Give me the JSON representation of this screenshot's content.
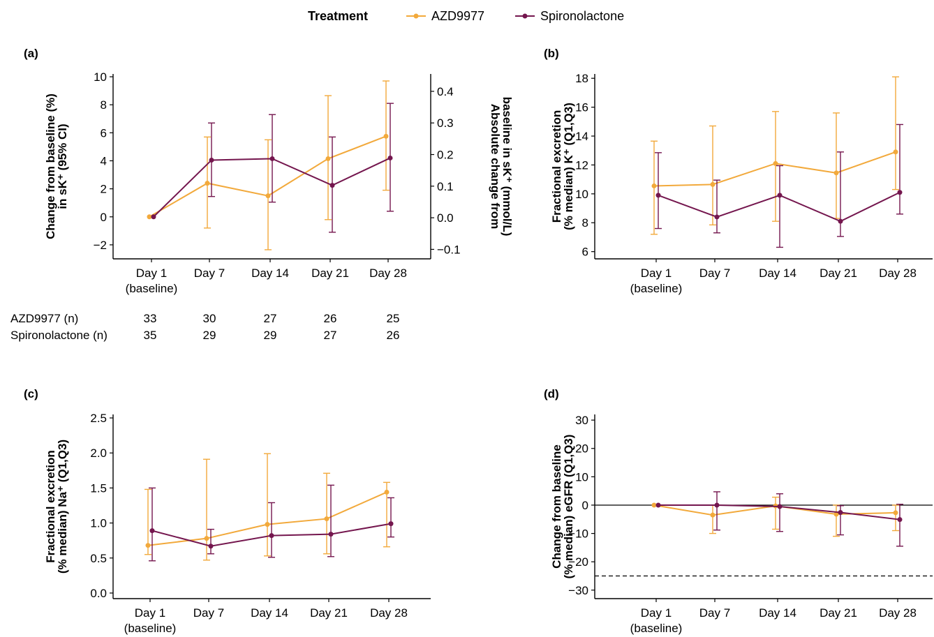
{
  "legend": {
    "title": "Treatment",
    "items": [
      {
        "label": "AZD9977",
        "color": "#F2A93B"
      },
      {
        "label": "Spironolactone",
        "color": "#74164E"
      }
    ]
  },
  "colors": {
    "azd": "#F2A93B",
    "spiro": "#74164E"
  },
  "x_tick_labels": [
    "Day 1",
    "Day 7",
    "Day 14",
    "Day 21",
    "Day 28"
  ],
  "x_tick_sublabel": "(baseline)",
  "n_table": {
    "rows": [
      {
        "label": "AZD9977 (n)",
        "values": [
          "33",
          "30",
          "27",
          "26",
          "25"
        ]
      },
      {
        "label": "Spironolactone (n)",
        "values": [
          "35",
          "29",
          "29",
          "27",
          "26"
        ]
      }
    ]
  },
  "chart_data": [
    {
      "panel": "(a)",
      "type": "line",
      "ylabel": [
        "Change from baseline (%)",
        "in sK⁺ (95% CI)"
      ],
      "y2label": [
        "Absolute change from",
        "baseline in sK⁺ (mmol/L)"
      ],
      "ylim": [
        -3,
        10.2
      ],
      "yticks": [
        10,
        8,
        6,
        4,
        2,
        0,
        -2
      ],
      "yticklabels": [
        "10",
        "8",
        "6",
        "4",
        "2",
        "0",
        "−2"
      ],
      "y2lim": [
        -0.13,
        0.455
      ],
      "y2ticks": [
        0.4,
        0.3,
        0.2,
        0.1,
        0.0,
        -0.1
      ],
      "y2ticklabels": [
        "0.4",
        "0.3",
        "0.2",
        "0.1",
        "0.0",
        "−0.1"
      ],
      "categories": [
        "Day 1 (baseline)",
        "Day 7",
        "Day 14",
        "Day 21",
        "Day 28"
      ],
      "series": [
        {
          "name": "AZD9977",
          "values": [
            0.0,
            2.4,
            1.5,
            4.15,
            5.75
          ],
          "lower": [
            0.0,
            -0.8,
            -2.35,
            -0.2,
            1.9
          ],
          "upper": [
            0.0,
            5.7,
            5.5,
            8.65,
            9.7
          ]
        },
        {
          "name": "Spironolactone",
          "values": [
            0.0,
            4.05,
            4.15,
            2.25,
            4.2
          ],
          "lower": [
            0.0,
            1.45,
            1.05,
            -1.1,
            0.4
          ],
          "upper": [
            0.0,
            6.7,
            7.3,
            5.7,
            8.1
          ]
        }
      ]
    },
    {
      "panel": "(b)",
      "type": "line",
      "ylabel": [
        "Fractional excretion",
        "(% median) K⁺ (Q1,Q3)"
      ],
      "ylim": [
        5.5,
        18.3
      ],
      "yticks": [
        18,
        16,
        14,
        12,
        10,
        8,
        6
      ],
      "yticklabels": [
        "18",
        "16",
        "14",
        "12",
        "10",
        "8",
        "6"
      ],
      "categories": [
        "Day 1 (baseline)",
        "Day 7",
        "Day 14",
        "Day 21",
        "Day 28"
      ],
      "series": [
        {
          "name": "AZD9977",
          "values": [
            10.55,
            10.65,
            12.1,
            11.45,
            12.9
          ],
          "lower": [
            7.2,
            7.85,
            8.1,
            8.3,
            10.3
          ],
          "upper": [
            13.65,
            14.7,
            15.7,
            15.6,
            18.1
          ]
        },
        {
          "name": "Spironolactone",
          "values": [
            9.9,
            8.4,
            9.9,
            8.1,
            10.1
          ],
          "lower": [
            7.6,
            7.3,
            6.3,
            7.05,
            8.6
          ],
          "upper": [
            12.85,
            10.95,
            11.95,
            12.9,
            14.8
          ]
        }
      ]
    },
    {
      "panel": "(c)",
      "type": "line",
      "ylabel": [
        "Fractional excretion",
        "(% median) Na⁺ (Q1,Q3)"
      ],
      "ylim": [
        -0.08,
        2.55
      ],
      "yticks": [
        2.5,
        2.0,
        1.5,
        1.0,
        0.5,
        0.0
      ],
      "yticklabels": [
        "2.5",
        "2.0",
        "1.5",
        "1.0",
        "0.5",
        "0.0"
      ],
      "categories": [
        "Day 1 (baseline)",
        "Day 7",
        "Day 14",
        "Day 21",
        "Day 28"
      ],
      "series": [
        {
          "name": "AZD9977",
          "values": [
            0.68,
            0.78,
            0.98,
            1.06,
            1.44
          ],
          "lower": [
            0.55,
            0.47,
            0.53,
            0.56,
            0.66
          ],
          "upper": [
            1.48,
            1.91,
            1.99,
            1.71,
            1.58
          ]
        },
        {
          "name": "Spironolactone",
          "values": [
            0.89,
            0.67,
            0.82,
            0.84,
            0.99
          ],
          "lower": [
            0.46,
            0.56,
            0.51,
            0.52,
            0.8
          ],
          "upper": [
            1.5,
            0.91,
            1.29,
            1.54,
            1.36
          ]
        }
      ]
    },
    {
      "panel": "(d)",
      "type": "line",
      "ylabel": [
        "Change from baseline",
        "(% median) eGFR (Q1,Q3)"
      ],
      "ylim": [
        -33,
        32
      ],
      "yticks": [
        30,
        20,
        10,
        0,
        -10,
        -20,
        -30
      ],
      "yticklabels": [
        "30",
        "20",
        "10",
        "0",
        "−10",
        "−20",
        "−30"
      ],
      "reference_lines": [
        0,
        -25
      ],
      "categories": [
        "Day 1 (baseline)",
        "Day 7",
        "Day 14",
        "Day 21",
        "Day 28"
      ],
      "series": [
        {
          "name": "AZD9977",
          "values": [
            0.0,
            -3.5,
            -0.3,
            -3.2,
            -2.7
          ],
          "lower": [
            0.0,
            -10.0,
            -8.5,
            -11.0,
            -9.0
          ],
          "upper": [
            0.0,
            0.0,
            2.8,
            0.0,
            0.0
          ]
        },
        {
          "name": "Spironolactone",
          "values": [
            0.0,
            0.0,
            -0.5,
            -2.6,
            -5.1
          ],
          "lower": [
            0.0,
            -8.8,
            -9.3,
            -10.5,
            -14.5
          ],
          "upper": [
            0.0,
            4.7,
            4.0,
            -0.2,
            0.3
          ]
        }
      ]
    }
  ]
}
